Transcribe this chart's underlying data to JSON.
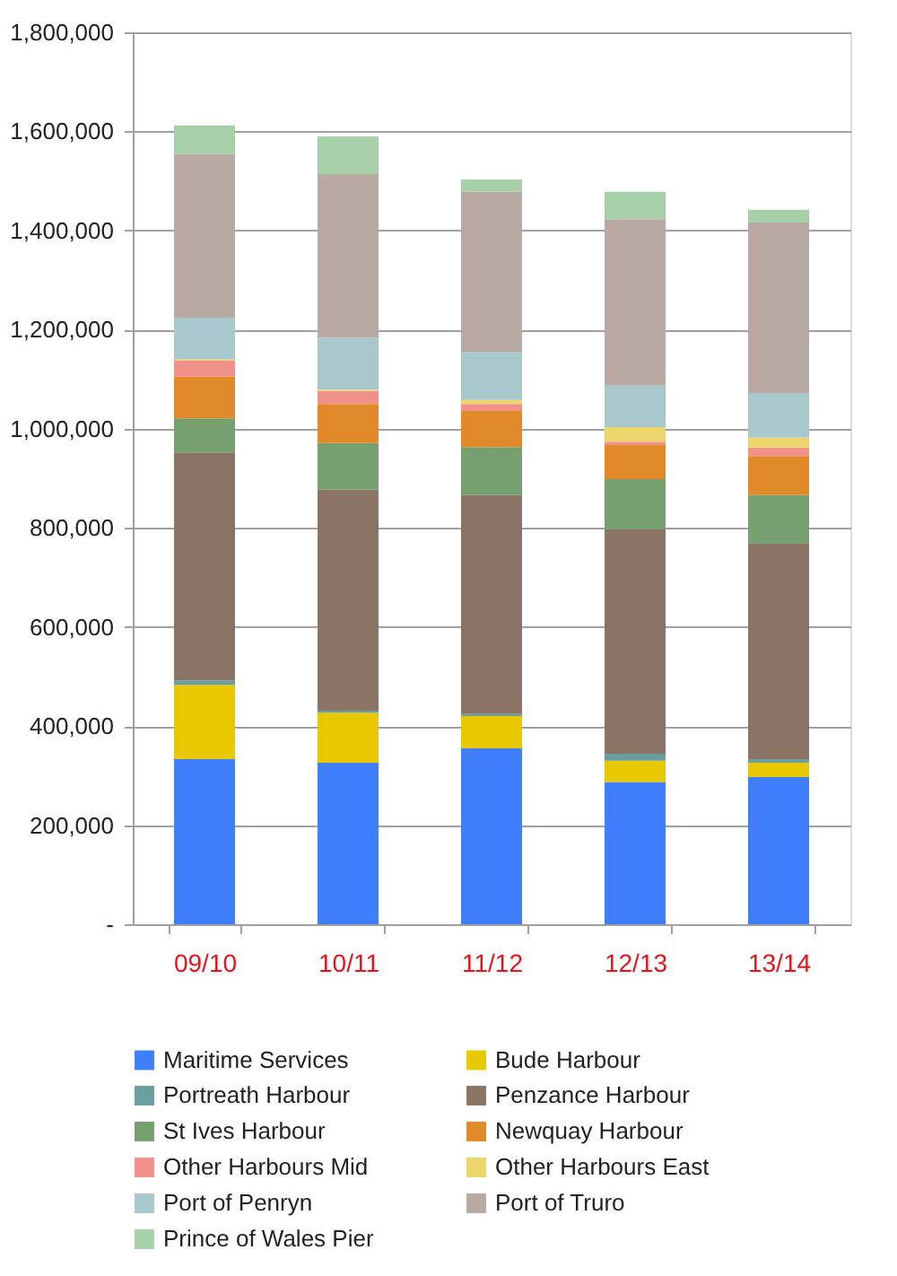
{
  "chart_data": {
    "type": "bar",
    "stacked": true,
    "categories": [
      "09/10",
      "10/11",
      "11/12",
      "12/13",
      "13/14"
    ],
    "series": [
      {
        "name": "Maritime Services",
        "color": "#3f7ffc",
        "values": [
          333000,
          326000,
          355000,
          287000,
          297000
        ]
      },
      {
        "name": "Bude Harbour",
        "color": "#e8c800",
        "values": [
          150000,
          101000,
          65000,
          43000,
          29000
        ]
      },
      {
        "name": "Portreath Harbour",
        "color": "#6a9ea0",
        "values": [
          9000,
          4000,
          4000,
          14000,
          7000
        ]
      },
      {
        "name": "Penzance Harbour",
        "color": "#8a7465",
        "values": [
          460000,
          446000,
          442000,
          453000,
          435000
        ]
      },
      {
        "name": "St Ives Harbour",
        "color": "#76a070",
        "values": [
          69000,
          94000,
          97000,
          101000,
          98000
        ]
      },
      {
        "name": "Newquay Harbour",
        "color": "#e08a2a",
        "values": [
          84000,
          79000,
          73000,
          69000,
          79000
        ]
      },
      {
        "name": "Other Harbours Mid",
        "color": "#f0928a",
        "values": [
          32000,
          26000,
          14000,
          7000,
          17000
        ]
      },
      {
        "name": "Other Harbours East",
        "color": "#ecd56a",
        "values": [
          3000,
          3000,
          8000,
          29000,
          20000
        ]
      },
      {
        "name": "Port of Penryn",
        "color": "#a8c8cc",
        "values": [
          84000,
          105000,
          97000,
          84000,
          90000
        ]
      },
      {
        "name": "Port of Truro",
        "color": "#b8aaa2",
        "values": [
          330000,
          330000,
          323000,
          336000,
          344000
        ]
      },
      {
        "name": "Prince of Wales Pier",
        "color": "#a8d0a8",
        "values": [
          58000,
          76000,
          25000,
          55000,
          26000
        ]
      }
    ],
    "ylim": [
      0,
      1800000
    ],
    "yticks": [
      {
        "value": 0,
        "label": "-"
      },
      {
        "value": 200000,
        "label": "200,000"
      },
      {
        "value": 400000,
        "label": "400,000"
      },
      {
        "value": 600000,
        "label": "600,000"
      },
      {
        "value": 800000,
        "label": "800,000"
      },
      {
        "value": 1000000,
        "label": "1,000,000"
      },
      {
        "value": 1200000,
        "label": "1,200,000"
      },
      {
        "value": 1400000,
        "label": "1,400,000"
      },
      {
        "value": 1600000,
        "label": "1,600,000"
      },
      {
        "value": 1800000,
        "label": "1,800,000"
      }
    ],
    "grid": "y",
    "legend": "bottom"
  }
}
